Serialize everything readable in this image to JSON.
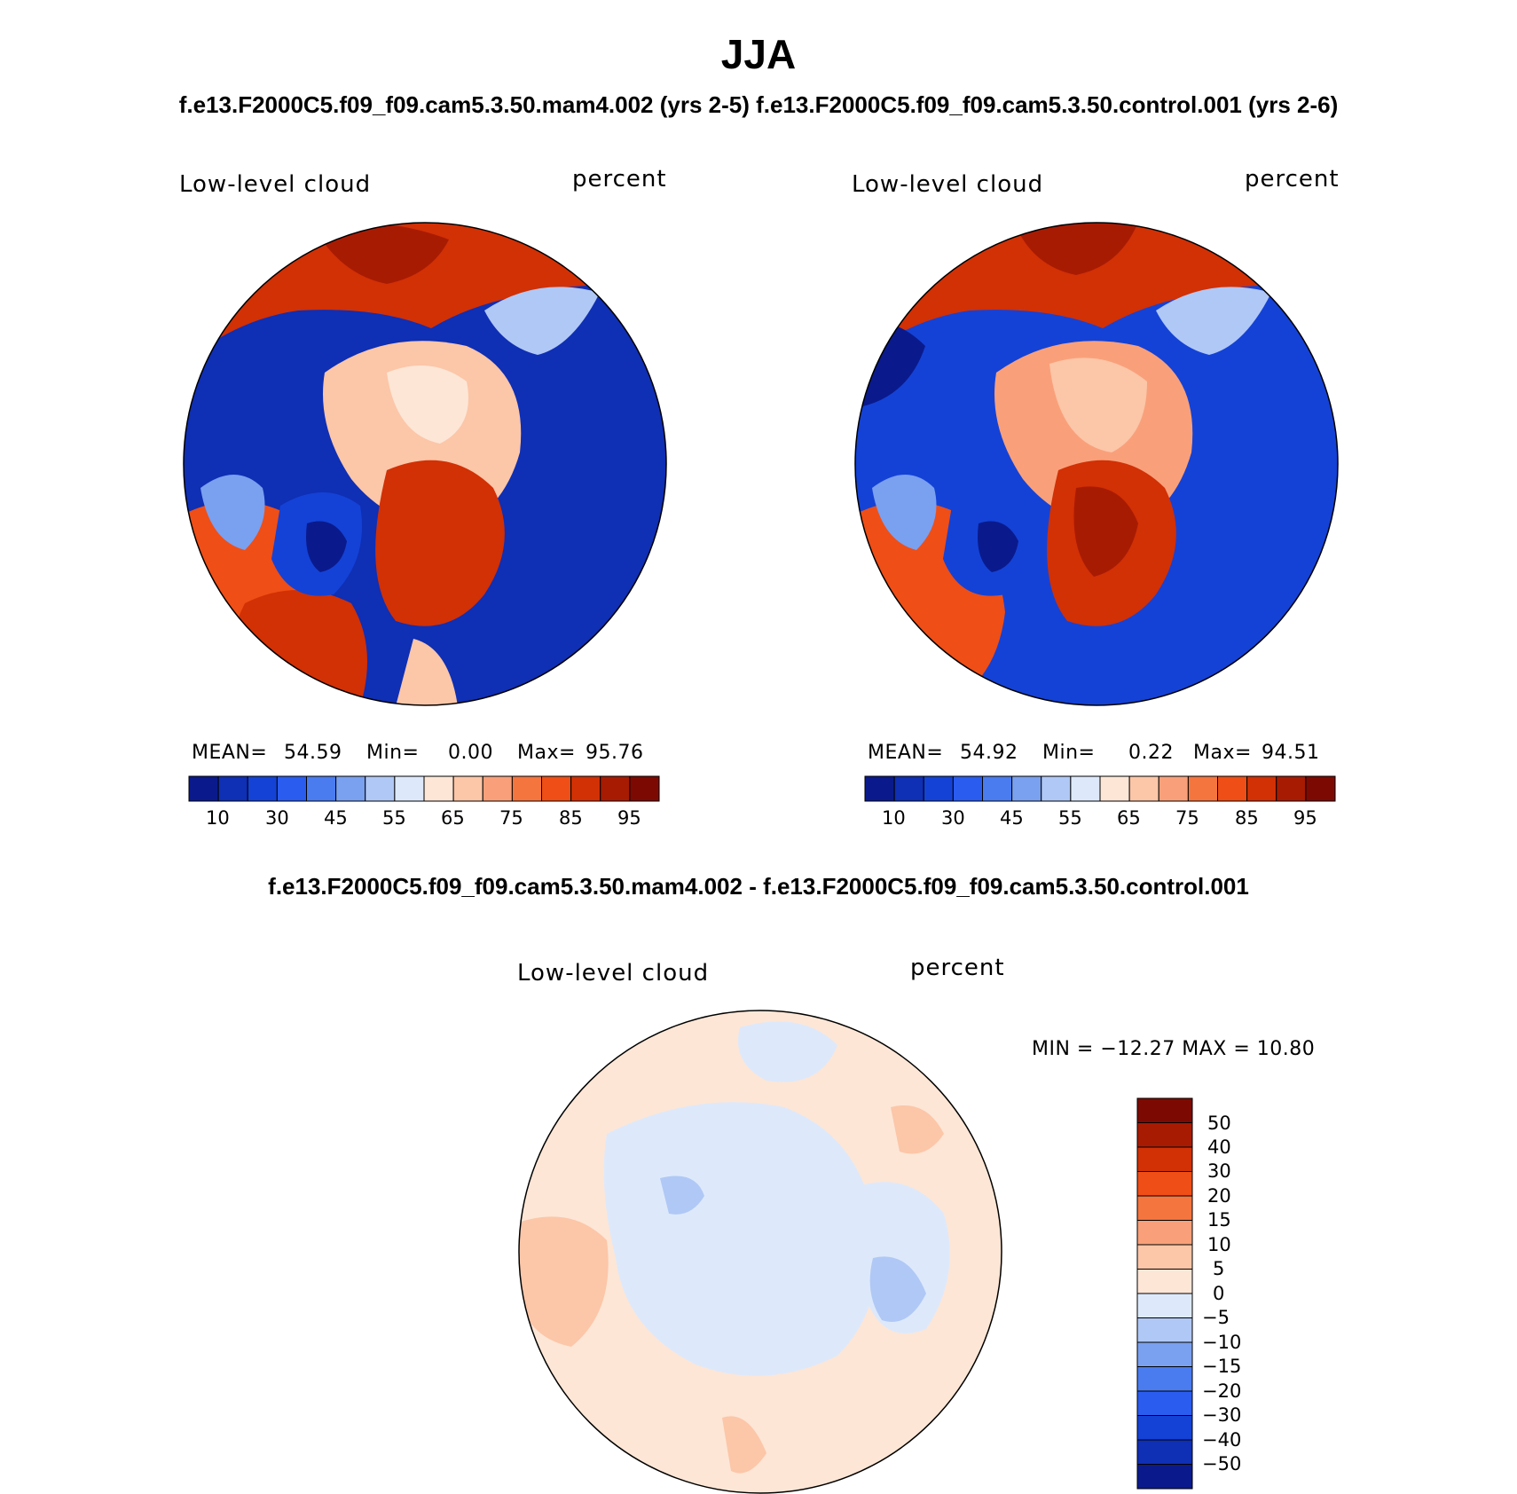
{
  "header": {
    "season": "JJA",
    "subtitle": "f.e13.F2000C5.f09_f09.cam5.3.50.mam4.002 (yrs 2-5) f.e13.F2000C5.f09_f09.cam5.3.50.control.001 (yrs 2-6)",
    "diff_title": "f.e13.F2000C5.f09_f09.cam5.3.50.mam4.002 - f.e13.F2000C5.f09_f09.cam5.3.50.control.001"
  },
  "panels": {
    "left": {
      "variable": "Low-level cloud",
      "units": "percent",
      "mean_label": "MEAN=",
      "mean_value": "54.59",
      "min_label": "Min=",
      "min_value": "0.00",
      "max_label": "Max=",
      "max_value": "95.76"
    },
    "right": {
      "variable": "Low-level cloud",
      "units": "percent",
      "mean_label": "MEAN=",
      "mean_value": "54.92",
      "min_label": "Min=",
      "min_value": "0.22",
      "max_label": "Max=",
      "max_value": "94.51"
    },
    "diff": {
      "variable": "Low-level cloud",
      "units": "percent",
      "minmax": "MIN = −12.27 MAX =   10.80"
    }
  },
  "colorbar_abs": {
    "colors": [
      "#0a1a8c",
      "#0f2fb4",
      "#1442d6",
      "#2a5cf0",
      "#4a7cf0",
      "#7aa0f0",
      "#b0c8f5",
      "#dde9fb",
      "#fde6d6",
      "#fcc6a8",
      "#f9a07a",
      "#f5753f",
      "#ef4e16",
      "#d23005",
      "#a81b03",
      "#7d0a02"
    ],
    "ticks": [
      "10",
      "30",
      "45",
      "55",
      "65",
      "75",
      "85",
      "95"
    ]
  },
  "colorbar_diff": {
    "colors": [
      "#7d0a02",
      "#a81b03",
      "#d23005",
      "#ef4e16",
      "#f5753f",
      "#f9a07a",
      "#fcc6a8",
      "#fde6d6",
      "#dde9fb",
      "#b0c8f5",
      "#7aa0f0",
      "#4a7cf0",
      "#2a5cf0",
      "#1442d6",
      "#0f2fb4",
      "#0a1a8c"
    ],
    "ticks": [
      "50",
      "40",
      "30",
      "20",
      "15",
      "10",
      "5",
      "0",
      "−5",
      "−10",
      "−15",
      "−20",
      "−30",
      "−40",
      "−50"
    ]
  }
}
